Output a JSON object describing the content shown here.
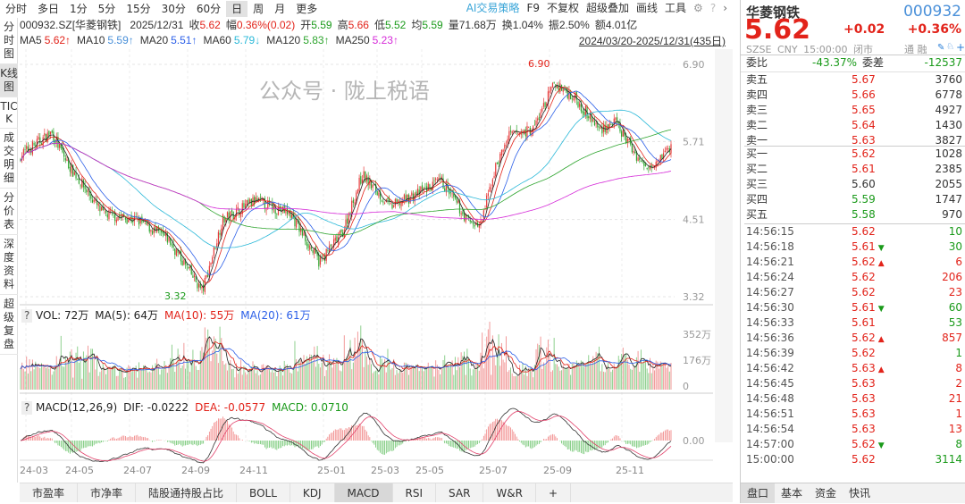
{
  "topbar": {
    "periods": [
      "分时",
      "多日",
      "1分",
      "5分",
      "15分",
      "30分",
      "60分",
      "日",
      "周",
      "月",
      "更多"
    ],
    "active": "日",
    "tools": [
      "AI交易策略",
      "F9",
      "不复权",
      "超级叠加",
      "画线",
      "工具"
    ]
  },
  "info": {
    "code": "000932.SZ[华菱钢铁]",
    "date": "2025/12/31",
    "close_label": "收",
    "close": "5.62",
    "chg_label": "幅",
    "chg": "0.36%(0.02)",
    "open_label": "开",
    "open": "5.59",
    "high_label": "高",
    "high": "5.66",
    "low_label": "低",
    "low": "5.52",
    "avg_label": "均",
    "avg": "5.59",
    "vol_label": "量",
    "vol": "71.68万",
    "turn_label": "换",
    "turn": "1.04%",
    "amp_label": "振",
    "amp": "2.50%",
    "amt_label": "额",
    "amt": "4.01亿"
  },
  "mas": [
    {
      "label": "MA5",
      "value": "5.62↑",
      "color": "#e2231a"
    },
    {
      "label": "MA10",
      "value": "5.59↑",
      "color": "#4a90d9"
    },
    {
      "label": "MA20",
      "value": "5.51↑",
      "color": "#2b5fe8"
    },
    {
      "label": "MA60",
      "value": "5.79↓",
      "color": "#2ab8d8"
    },
    {
      "label": "MA120",
      "value": "5.83↑",
      "color": "#2fa52f"
    },
    {
      "label": "MA250",
      "value": "5.23↑",
      "color": "#d52ad8"
    }
  ],
  "range": "2024/03/20-2025/12/31(435日)",
  "left_tabs": [
    "分时图",
    "K线图",
    "TICK",
    "成交明细",
    "分价表",
    "深度资料",
    "超级复盘"
  ],
  "price_axis": {
    "ticks": [
      "6.90",
      "5.71",
      "4.51",
      "3.32"
    ],
    "high_label": "6.90",
    "low_label": "3.32"
  },
  "price_path": [
    [
      "2024-03-20",
      5.5
    ],
    [
      "2024-04-20",
      5.85
    ],
    [
      "2024-05-05",
      5.4
    ],
    [
      "2024-06-10",
      4.6
    ],
    [
      "2024-07-15",
      4.5
    ],
    [
      "2024-08-15",
      4.2
    ],
    [
      "2024-09-18",
      3.4
    ],
    [
      "2024-10-08",
      4.5
    ],
    [
      "2024-11-10",
      4.8
    ],
    [
      "2024-12-15",
      4.6
    ],
    [
      "2025-01-13",
      3.85
    ],
    [
      "2025-02-05",
      4.3
    ],
    [
      "2025-02-25",
      5.2
    ],
    [
      "2025-03-25",
      4.7
    ],
    [
      "2025-05-15",
      5.1
    ],
    [
      "2025-06-10",
      4.5
    ],
    [
      "2025-06-23",
      4.4
    ],
    [
      "2025-07-08",
      5.3
    ],
    [
      "2025-07-22",
      5.8
    ],
    [
      "2025-08-15",
      5.9
    ],
    [
      "2025-09-05",
      6.6
    ],
    [
      "2025-09-25",
      6.4
    ],
    [
      "2025-10-20",
      5.9
    ],
    [
      "2025-11-05",
      6.0
    ],
    [
      "2025-12-05",
      5.3
    ],
    [
      "2025-12-31",
      5.62
    ]
  ],
  "volume": {
    "help": "?",
    "vol": "VOL: 72万",
    "ma5": "MA(5): 64万",
    "ma10": "MA(10): 55万",
    "ma20": "MA(20): 61万",
    "ticks": [
      "352万",
      "176万",
      "0"
    ]
  },
  "macd": {
    "help": "?",
    "name": "MACD(12,26,9)",
    "dif": "DIF: -0.0222",
    "dea": "DEA: -0.0577",
    "macd": "MACD: 0.0710",
    "zero": "0.00"
  },
  "x_ticks": [
    "24-03",
    "24-05",
    "24-07",
    "24-09",
    "24-11",
    "25-01",
    "25-03",
    "25-05",
    "25-07",
    "25-09",
    "25-11"
  ],
  "bottom_tabs": [
    "市盈率",
    "市净率",
    "陆股通持股占比",
    "BOLL",
    "KDJ",
    "MACD",
    "RSI",
    "SAR",
    "W&R",
    "+"
  ],
  "bottom_active": "MACD",
  "quote": {
    "name": "华菱钢铁",
    "code": "000932",
    "price": "5.62",
    "change": "+0.02",
    "pct": "+0.36%",
    "exchange": "SZSE",
    "currency": "CNY",
    "time": "15:00:00",
    "status": "闭市",
    "flags": "通 融",
    "ratio_label": "委比",
    "ratio": "-43.37%",
    "diff_label": "委差",
    "diff": "-12537"
  },
  "asks": [
    {
      "label": "卖五",
      "price": "5.67",
      "vol": "3760",
      "color": "#e2231a"
    },
    {
      "label": "卖四",
      "price": "5.66",
      "vol": "6778",
      "color": "#e2231a"
    },
    {
      "label": "卖三",
      "price": "5.65",
      "vol": "4927",
      "color": "#e2231a"
    },
    {
      "label": "卖二",
      "price": "5.64",
      "vol": "1430",
      "color": "#e2231a"
    },
    {
      "label": "卖一",
      "price": "5.63",
      "vol": "3827",
      "color": "#e2231a"
    }
  ],
  "bids": [
    {
      "label": "买一",
      "price": "5.62",
      "vol": "1028",
      "color": "#e2231a"
    },
    {
      "label": "买二",
      "price": "5.61",
      "vol": "2385",
      "color": "#e2231a"
    },
    {
      "label": "买三",
      "price": "5.60",
      "vol": "2055",
      "color": "#333333"
    },
    {
      "label": "买四",
      "price": "5.59",
      "vol": "1747",
      "color": "#1a9a1a"
    },
    {
      "label": "买五",
      "price": "5.58",
      "vol": "970",
      "color": "#1a9a1a"
    }
  ],
  "ticks": [
    {
      "t": "14:56:15",
      "p": "5.62",
      "arrow": "",
      "v": "10",
      "vc": "g"
    },
    {
      "t": "14:56:18",
      "p": "5.61",
      "arrow": "down",
      "v": "30",
      "vc": "g"
    },
    {
      "t": "14:56:21",
      "p": "5.62",
      "arrow": "up",
      "v": "6",
      "vc": "r"
    },
    {
      "t": "14:56:24",
      "p": "5.62",
      "arrow": "",
      "v": "206",
      "vc": "r"
    },
    {
      "t": "14:56:27",
      "p": "5.62",
      "arrow": "",
      "v": "23",
      "vc": "r"
    },
    {
      "t": "14:56:30",
      "p": "5.61",
      "arrow": "down",
      "v": "60",
      "vc": "g"
    },
    {
      "t": "14:56:33",
      "p": "5.61",
      "arrow": "",
      "v": "53",
      "vc": "g"
    },
    {
      "t": "14:56:36",
      "p": "5.62",
      "arrow": "up",
      "v": "857",
      "vc": "r"
    },
    {
      "t": "14:56:39",
      "p": "5.62",
      "arrow": "",
      "v": "1",
      "vc": "g"
    },
    {
      "t": "14:56:42",
      "p": "5.63",
      "arrow": "up",
      "v": "8",
      "vc": "r"
    },
    {
      "t": "14:56:45",
      "p": "5.63",
      "arrow": "",
      "v": "2",
      "vc": "r"
    },
    {
      "t": "14:56:48",
      "p": "5.63",
      "arrow": "",
      "v": "21",
      "vc": "r"
    },
    {
      "t": "14:56:51",
      "p": "5.63",
      "arrow": "",
      "v": "1",
      "vc": "r"
    },
    {
      "t": "14:56:54",
      "p": "5.63",
      "arrow": "",
      "v": "13",
      "vc": "r"
    },
    {
      "t": "14:57:00",
      "p": "5.62",
      "arrow": "down",
      "v": "8",
      "vc": "g"
    },
    {
      "t": "15:00:00",
      "p": "5.62",
      "arrow": "",
      "v": "3114",
      "vc": "g"
    }
  ],
  "right_tabs": [
    "盘口",
    "基本",
    "资金",
    "快讯"
  ],
  "watermark": "公众号 · 陇上税语"
}
